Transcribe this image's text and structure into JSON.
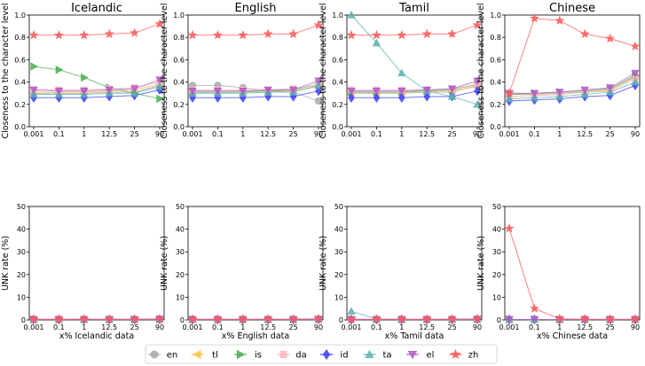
{
  "chart_data": {
    "type": "line",
    "x_tick_labels": [
      "0.001",
      "0.1",
      "1",
      "12.5",
      "25",
      "90"
    ],
    "legend": [
      {
        "name": "en",
        "color": "#a9a9a9",
        "marker": "circle"
      },
      {
        "name": "tl",
        "color": "#ffbf47",
        "marker": "triangle-left"
      },
      {
        "name": "is",
        "color": "#4caf50",
        "marker": "triangle-right"
      },
      {
        "name": "da",
        "color": "#ffb6c1",
        "marker": "square"
      },
      {
        "name": "id",
        "color": "#4040ff",
        "marker": "diamond"
      },
      {
        "name": "ta",
        "color": "#5fb3b3",
        "marker": "triangle-up"
      },
      {
        "name": "el",
        "color": "#b05cc8",
        "marker": "triangle-down"
      },
      {
        "name": "zh",
        "color": "#ff5a5a",
        "marker": "star"
      }
    ],
    "panels": [
      {
        "title": "Icelandic",
        "xlabel": "x% Icelandic data",
        "top": {
          "ylabel": "Closeness to the character level",
          "ylim": [
            0,
            1.0
          ],
          "yticks": [
            "0.0",
            "0.2",
            "0.4",
            "0.6",
            "0.8",
            "1.0"
          ],
          "series": {
            "en": [
              0.3,
              0.3,
              0.3,
              0.31,
              0.31,
              0.37
            ],
            "tl": [
              0.31,
              0.31,
              0.31,
              0.32,
              0.33,
              0.38
            ],
            "is": [
              0.54,
              0.51,
              0.44,
              0.35,
              0.3,
              0.25
            ],
            "da": [
              0.33,
              0.33,
              0.33,
              0.34,
              0.35,
              0.4
            ],
            "id": [
              0.26,
              0.26,
              0.26,
              0.27,
              0.28,
              0.33
            ],
            "ta": [
              0.29,
              0.29,
              0.29,
              0.3,
              0.3,
              0.36
            ],
            "el": [
              0.33,
              0.32,
              0.32,
              0.33,
              0.34,
              0.42
            ],
            "zh": [
              0.82,
              0.82,
              0.82,
              0.83,
              0.84,
              0.92
            ]
          }
        },
        "bottom": {
          "ylabel": "UNK rate (%)",
          "ylim": [
            0,
            50
          ],
          "yticks": [
            "0",
            "10",
            "20",
            "30",
            "40",
            "50"
          ],
          "series": {
            "en": [
              0.2,
              0.2,
              0.2,
              0.2,
              0.2,
              0.3
            ],
            "tl": [
              0.2,
              0.2,
              0.2,
              0.2,
              0.2,
              0.3
            ],
            "is": [
              0.2,
              0.2,
              0.2,
              0.2,
              0.2,
              0.3
            ],
            "da": [
              0.2,
              0.2,
              0.2,
              0.2,
              0.2,
              0.3
            ],
            "id": [
              0.2,
              0.2,
              0.2,
              0.2,
              0.2,
              0.3
            ],
            "ta": [
              0.3,
              0.3,
              0.3,
              0.3,
              0.3,
              0.3
            ],
            "el": [
              0.2,
              0.2,
              0.2,
              0.2,
              0.2,
              0.3
            ],
            "zh": [
              0.3,
              0.3,
              0.3,
              0.3,
              0.3,
              0.4
            ]
          }
        }
      },
      {
        "title": "English",
        "xlabel": "x% English data",
        "top": {
          "ylabel": "Closeness to the character level",
          "ylim": [
            0,
            1.0
          ],
          "yticks": [
            "0.0",
            "0.2",
            "0.4",
            "0.6",
            "0.8",
            "1.0"
          ],
          "series": {
            "en": [
              0.37,
              0.37,
              0.35,
              0.32,
              0.31,
              0.23
            ],
            "tl": [
              0.31,
              0.31,
              0.31,
              0.32,
              0.32,
              0.36
            ],
            "is": [
              0.31,
              0.31,
              0.31,
              0.32,
              0.33,
              0.38
            ],
            "da": [
              0.33,
              0.33,
              0.33,
              0.33,
              0.34,
              0.38
            ],
            "id": [
              0.26,
              0.26,
              0.26,
              0.27,
              0.27,
              0.32
            ],
            "ta": [
              0.3,
              0.3,
              0.3,
              0.31,
              0.31,
              0.37
            ],
            "el": [
              0.32,
              0.32,
              0.32,
              0.33,
              0.33,
              0.41
            ],
            "zh": [
              0.82,
              0.82,
              0.82,
              0.83,
              0.83,
              0.91
            ]
          }
        },
        "bottom": {
          "ylabel": "UNK rate (%)",
          "ylim": [
            0,
            50
          ],
          "yticks": [
            "0",
            "10",
            "20",
            "30",
            "40",
            "50"
          ],
          "series": {
            "en": [
              0.2,
              0.2,
              0.2,
              0.2,
              0.2,
              0.3
            ],
            "tl": [
              0.2,
              0.2,
              0.2,
              0.2,
              0.2,
              0.3
            ],
            "is": [
              0.2,
              0.2,
              0.2,
              0.2,
              0.2,
              0.3
            ],
            "da": [
              0.2,
              0.2,
              0.2,
              0.2,
              0.2,
              0.3
            ],
            "id": [
              0.2,
              0.2,
              0.2,
              0.2,
              0.2,
              0.3
            ],
            "ta": [
              0.3,
              0.3,
              0.3,
              0.3,
              0.3,
              0.3
            ],
            "el": [
              0.2,
              0.2,
              0.2,
              0.2,
              0.2,
              0.3
            ],
            "zh": [
              0.3,
              0.3,
              0.3,
              0.3,
              0.3,
              0.5
            ]
          }
        }
      },
      {
        "title": "Tamil",
        "xlabel": "x% Tamil data",
        "top": {
          "ylabel": "Closeness to the character level",
          "ylim": [
            0,
            1.0
          ],
          "yticks": [
            "0.0",
            "0.2",
            "0.4",
            "0.6",
            "0.8",
            "1.0"
          ],
          "series": {
            "en": [
              0.3,
              0.3,
              0.3,
              0.31,
              0.31,
              0.37
            ],
            "tl": [
              0.31,
              0.31,
              0.31,
              0.32,
              0.32,
              0.36
            ],
            "is": [
              0.31,
              0.31,
              0.31,
              0.32,
              0.33,
              0.38
            ],
            "da": [
              0.33,
              0.33,
              0.33,
              0.33,
              0.34,
              0.38
            ],
            "id": [
              0.26,
              0.26,
              0.26,
              0.27,
              0.27,
              0.32
            ],
            "ta": [
              1.0,
              0.75,
              0.48,
              0.32,
              0.27,
              0.2
            ],
            "el": [
              0.32,
              0.32,
              0.32,
              0.33,
              0.34,
              0.41
            ],
            "zh": [
              0.82,
              0.82,
              0.82,
              0.83,
              0.83,
              0.91
            ]
          }
        },
        "bottom": {
          "ylabel": "UNK rate (%)",
          "ylim": [
            0,
            50
          ],
          "yticks": [
            "0",
            "10",
            "20",
            "30",
            "40",
            "50"
          ],
          "series": {
            "en": [
              0.2,
              0.2,
              0.2,
              0.2,
              0.2,
              0.3
            ],
            "tl": [
              0.2,
              0.2,
              0.2,
              0.2,
              0.2,
              0.3
            ],
            "is": [
              0.2,
              0.2,
              0.2,
              0.2,
              0.2,
              0.3
            ],
            "da": [
              0.2,
              0.2,
              0.2,
              0.2,
              0.2,
              0.3
            ],
            "id": [
              0.2,
              0.2,
              0.2,
              0.2,
              0.2,
              0.3
            ],
            "ta": [
              3.8,
              0.4,
              0.3,
              0.3,
              0.3,
              0.3
            ],
            "el": [
              0.2,
              0.2,
              0.2,
              0.2,
              0.2,
              0.3
            ],
            "zh": [
              0.3,
              0.3,
              0.3,
              0.3,
              0.3,
              0.4
            ]
          }
        }
      },
      {
        "title": "Chinese",
        "xlabel": "x% Chinese data",
        "top": {
          "ylabel": "Closeness to the character level",
          "ylim": [
            0,
            1.0
          ],
          "yticks": [
            "0.0",
            "0.2",
            "0.4",
            "0.6",
            "0.8",
            "1.0"
          ],
          "series": {
            "en": [
              0.29,
              0.29,
              0.3,
              0.31,
              0.33,
              0.45
            ],
            "tl": [
              0.27,
              0.28,
              0.29,
              0.31,
              0.33,
              0.44
            ],
            "is": [
              0.29,
              0.3,
              0.31,
              0.32,
              0.34,
              0.46
            ],
            "da": [
              0.27,
              0.28,
              0.29,
              0.31,
              0.32,
              0.43
            ],
            "id": [
              0.23,
              0.24,
              0.25,
              0.27,
              0.28,
              0.37
            ],
            "ta": [
              0.25,
              0.26,
              0.27,
              0.29,
              0.31,
              0.4
            ],
            "el": [
              0.3,
              0.3,
              0.31,
              0.33,
              0.35,
              0.48
            ],
            "zh": [
              0.3,
              0.97,
              0.95,
              0.83,
              0.79,
              0.72
            ]
          }
        },
        "bottom": {
          "ylabel": "UNK rate (%)",
          "ylim": [
            0,
            50
          ],
          "yticks": [
            "0",
            "10",
            "20",
            "30",
            "40",
            "50"
          ],
          "series": {
            "en": [
              0.2,
              0.2,
              0.2,
              0.2,
              0.2,
              0.2
            ],
            "tl": [
              0.2,
              0.2,
              0.2,
              0.2,
              0.2,
              0.2
            ],
            "is": [
              0.2,
              0.2,
              0.2,
              0.2,
              0.2,
              0.2
            ],
            "da": [
              0.2,
              0.2,
              0.2,
              0.2,
              0.2,
              0.2
            ],
            "id": [
              0.2,
              0.2,
              0.2,
              0.2,
              0.2,
              0.2
            ],
            "ta": [
              0.2,
              0.2,
              0.2,
              0.2,
              0.2,
              0.2
            ],
            "el": [
              0.2,
              0.2,
              0.2,
              0.2,
              0.2,
              0.2
            ],
            "zh": [
              40.3,
              5.0,
              0.5,
              0.3,
              0.3,
              0.3
            ]
          }
        }
      }
    ]
  }
}
